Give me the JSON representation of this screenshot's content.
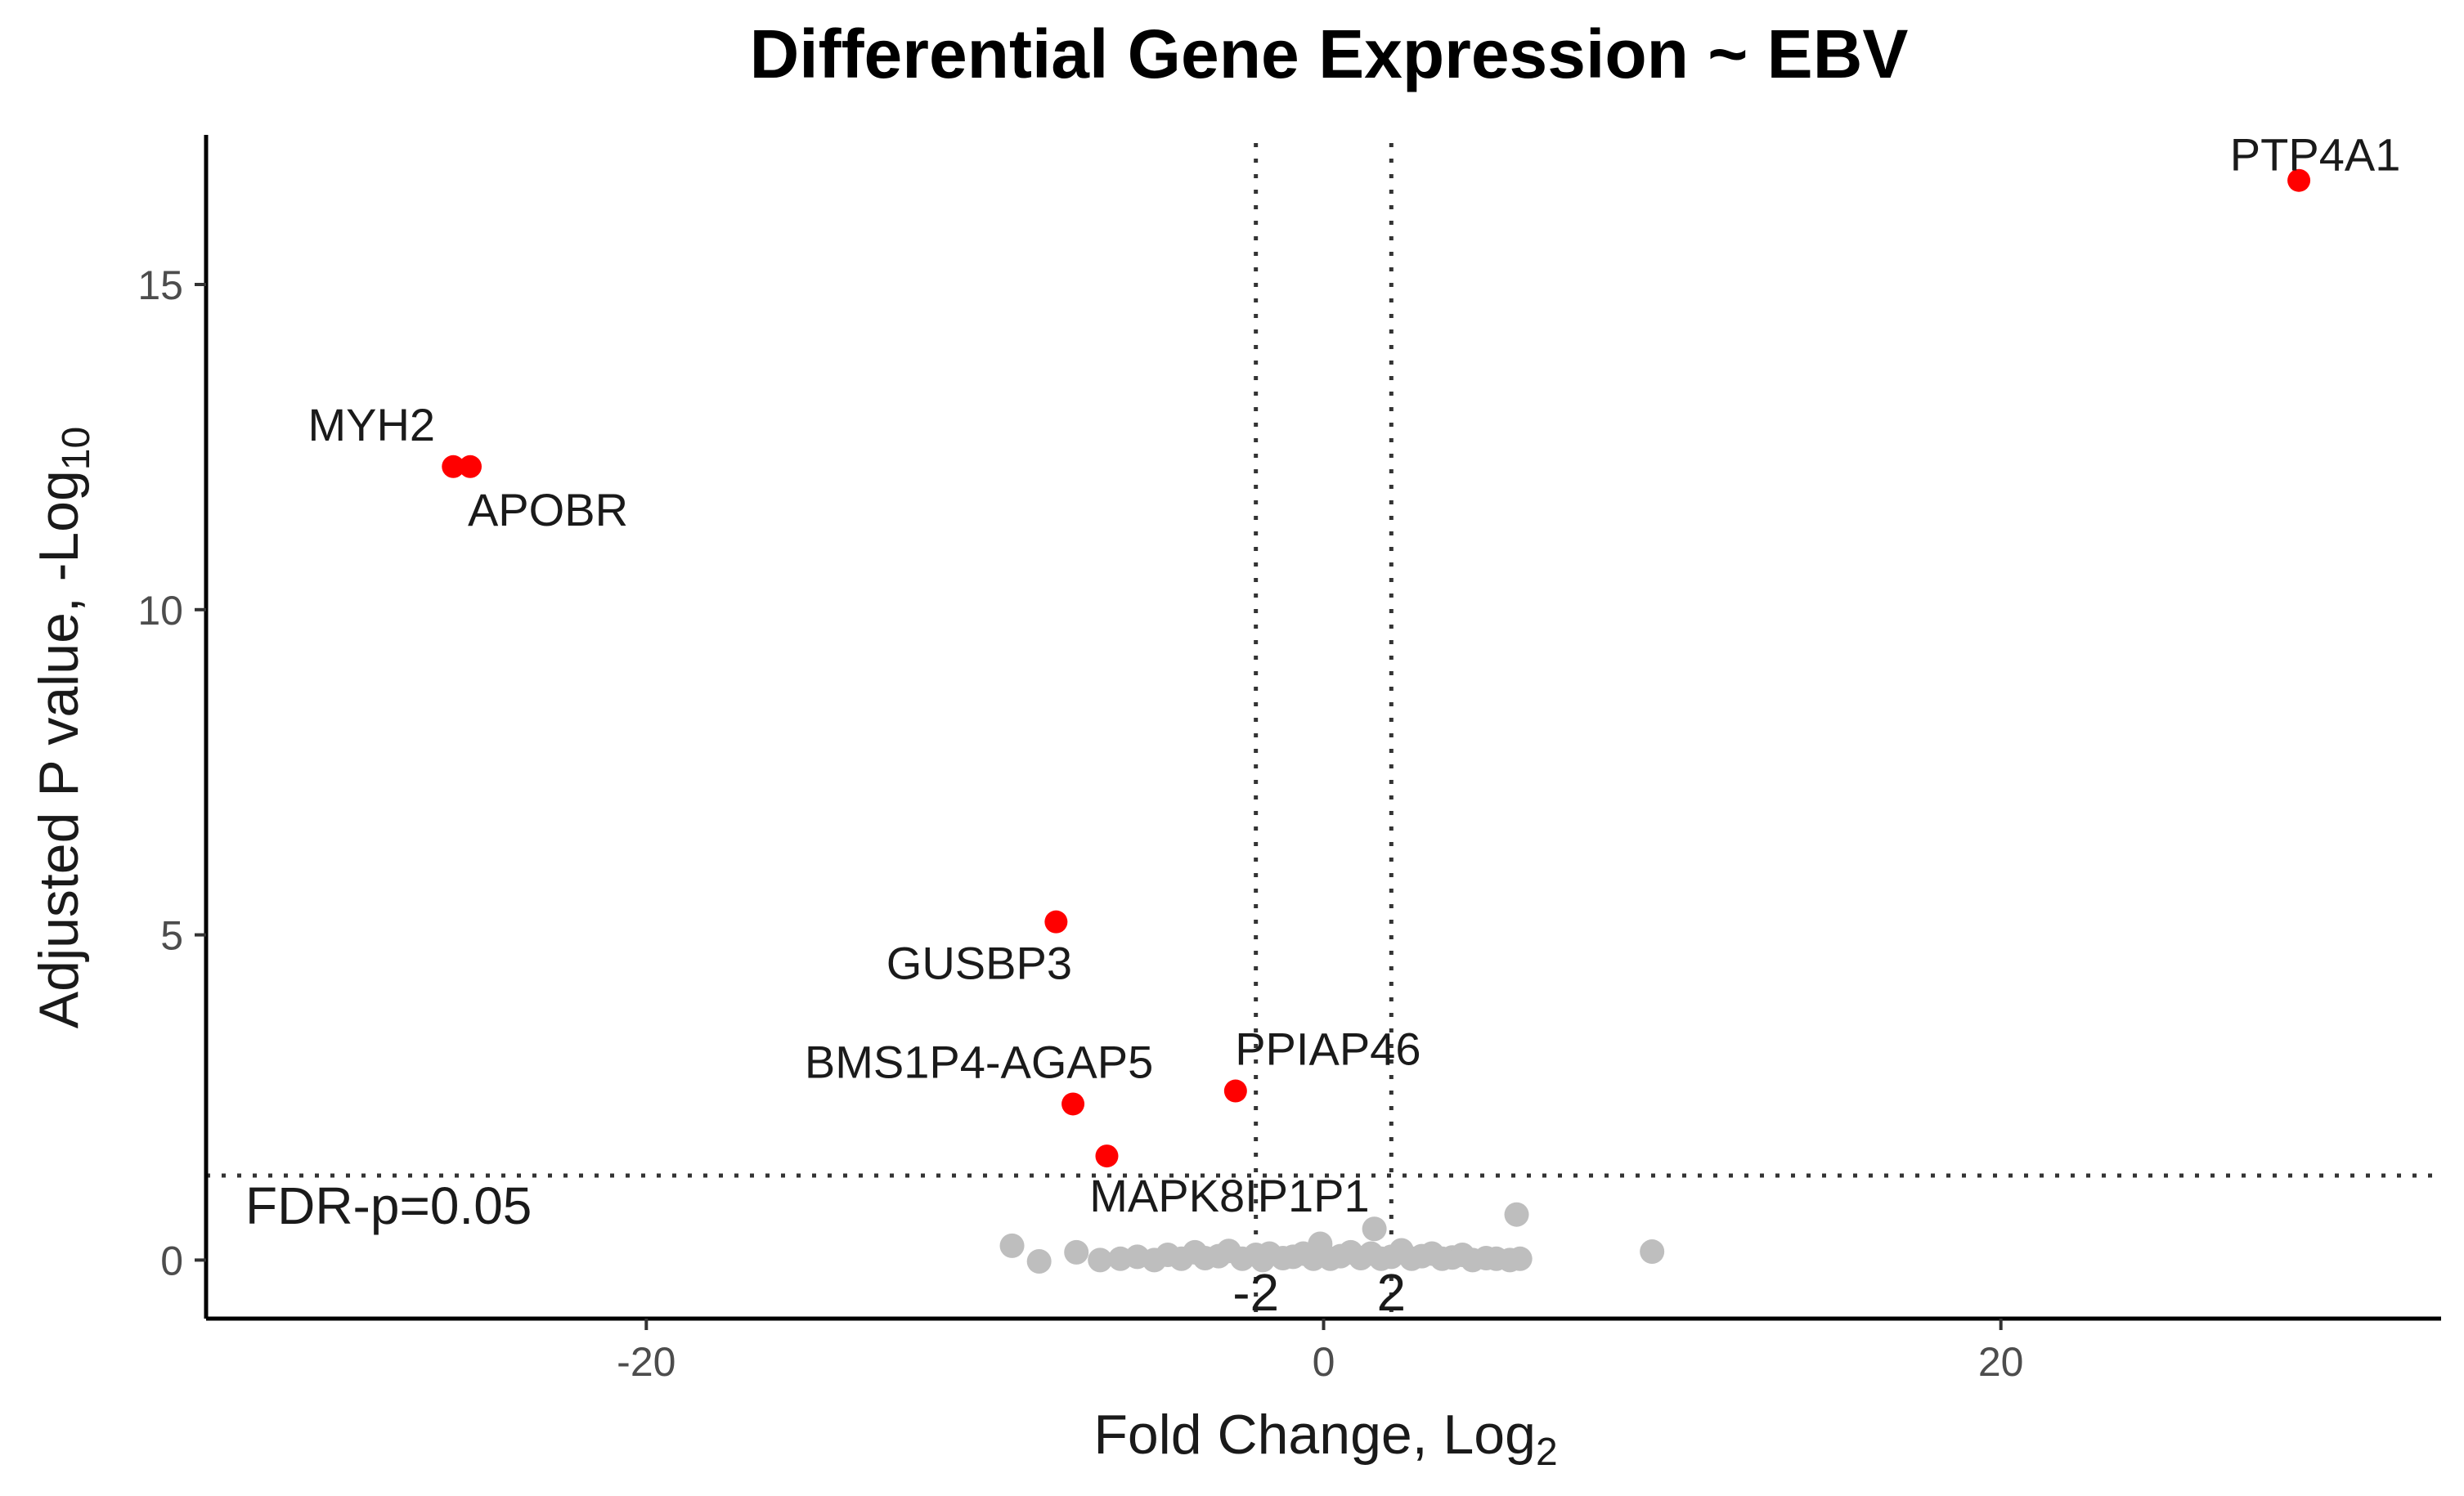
{
  "chart_data": {
    "type": "scatter",
    "title": "Differential Gene Expression ~ EBV",
    "xlabel": "Fold Change, Log",
    "xlabel_sub": "2",
    "ylabel": "Adjusted P value, -Log",
    "ylabel_sub": "10",
    "xlim": [
      -33,
      33
    ],
    "ylim": [
      -0.9,
      17.3
    ],
    "xticks": [
      -20,
      0,
      20
    ],
    "yticks": [
      0,
      5,
      10,
      15
    ],
    "grid": false,
    "legend": "none",
    "colors": {
      "significant": "#ff0000",
      "not_significant": "#bebebe",
      "axis": "#000000",
      "reference_line": "#333333"
    },
    "thresholds": {
      "fc_lines": [
        -2,
        2
      ],
      "fc_labels": [
        "-2",
        "2"
      ],
      "fdr_y": 1.3,
      "fdr_label": "FDR-p=0.05"
    },
    "significant_genes": [
      {
        "label": "PTP4A1",
        "x": 28.8,
        "y": 16.6
      },
      {
        "label": "MYH2",
        "x": -25.7,
        "y": 12.2
      },
      {
        "label": "APOBR",
        "x": -25.2,
        "y": 12.2
      },
      {
        "label": "GUSBP3",
        "x": -7.9,
        "y": 5.2
      },
      {
        "label": "PPIAP46",
        "x": -2.6,
        "y": 2.6
      },
      {
        "label": "BMS1P4-AGAP5",
        "x": -7.4,
        "y": 2.4
      },
      {
        "label": "MAPK8IP1P1",
        "x": -6.4,
        "y": 1.6
      }
    ],
    "nonsignificant_points": [
      [
        -9.2,
        0.22
      ],
      [
        -8.4,
        -0.02
      ],
      [
        -7.3,
        0.12
      ],
      [
        -6.6,
        0.0
      ],
      [
        -6.0,
        0.02
      ],
      [
        -5.5,
        0.05
      ],
      [
        -5.0,
        0.0
      ],
      [
        -4.6,
        0.08
      ],
      [
        -4.2,
        0.02
      ],
      [
        -3.8,
        0.12
      ],
      [
        -3.5,
        0.03
      ],
      [
        -3.1,
        0.06
      ],
      [
        -2.8,
        0.14
      ],
      [
        -2.4,
        0.02
      ],
      [
        -2.0,
        0.08
      ],
      [
        -1.6,
        0.1
      ],
      [
        -1.2,
        0.03
      ],
      [
        -0.9,
        0.05
      ],
      [
        -0.6,
        0.1
      ],
      [
        -0.3,
        0.02
      ],
      [
        -1.8,
        0.0
      ],
      [
        -0.1,
        0.25
      ],
      [
        0.2,
        0.02
      ],
      [
        0.5,
        0.06
      ],
      [
        0.8,
        0.12
      ],
      [
        1.1,
        0.03
      ],
      [
        1.4,
        0.1
      ],
      [
        1.5,
        0.48
      ],
      [
        1.7,
        0.02
      ],
      [
        2.0,
        0.05
      ],
      [
        2.3,
        0.15
      ],
      [
        2.6,
        0.02
      ],
      [
        2.9,
        0.06
      ],
      [
        3.2,
        0.1
      ],
      [
        3.5,
        0.02
      ],
      [
        3.8,
        0.04
      ],
      [
        4.1,
        0.08
      ],
      [
        4.4,
        0.0
      ],
      [
        4.8,
        0.03
      ],
      [
        5.1,
        0.02
      ],
      [
        5.5,
        0.0
      ],
      [
        5.8,
        0.02
      ],
      [
        5.7,
        0.7
      ],
      [
        9.7,
        0.13
      ]
    ]
  }
}
